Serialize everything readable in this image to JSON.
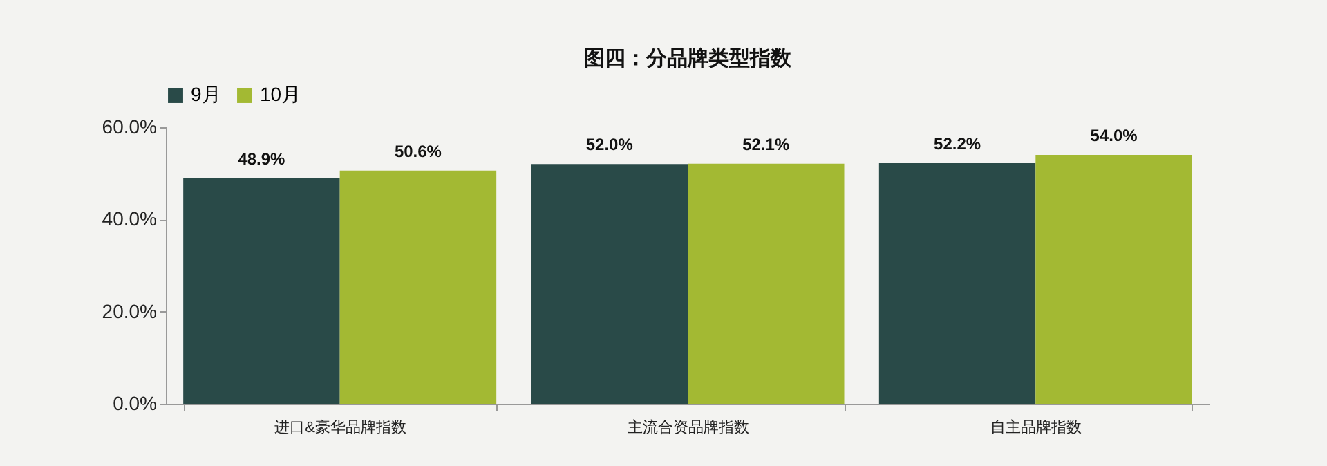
{
  "chart_data": {
    "type": "bar",
    "title": "图四：分品牌类型指数",
    "categories": [
      "进口&豪华品牌指数",
      "主流合资品牌指数",
      "自主品牌指数"
    ],
    "series": [
      {
        "name": "9月",
        "color": "#294a48",
        "values": [
          48.9,
          52.0,
          52.2
        ],
        "value_labels": [
          "48.9%",
          "52.0%",
          "52.2%"
        ]
      },
      {
        "name": "10月",
        "color": "#a3b933",
        "values": [
          50.6,
          52.1,
          54.0
        ],
        "value_labels": [
          "50.6%",
          "52.1%",
          "54.0%"
        ]
      }
    ],
    "ylim": [
      0,
      60
    ],
    "yticks": [
      {
        "value": 0,
        "label": "0.0%"
      },
      {
        "value": 20,
        "label": "20.0%"
      },
      {
        "value": 40,
        "label": "40.0%"
      },
      {
        "value": 60,
        "label": "60.0%"
      }
    ],
    "grid": false,
    "legend": "top"
  }
}
